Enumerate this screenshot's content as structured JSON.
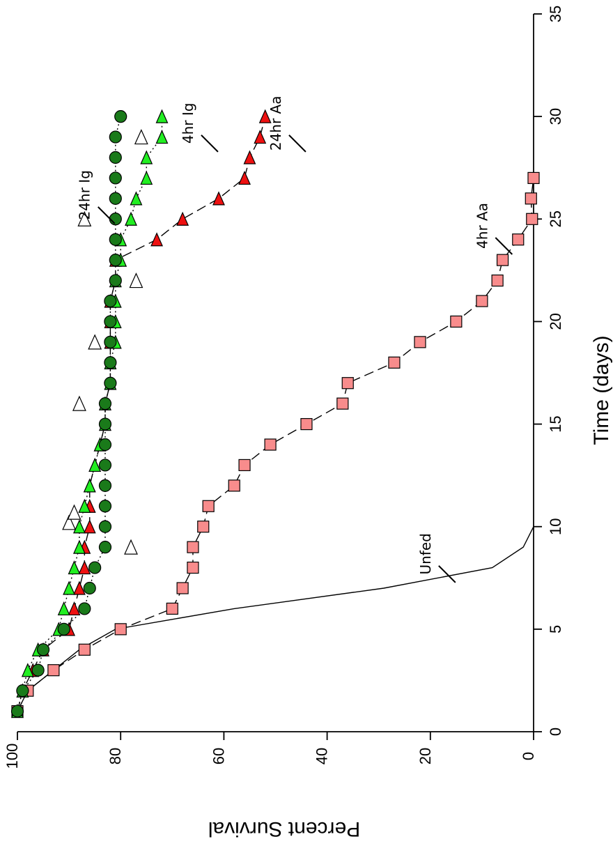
{
  "chart_data": {
    "type": "line",
    "xlabel": "Time (days)",
    "ylabel": "Percent Survival",
    "xlim": [
      0,
      35
    ],
    "ylim": [
      0,
      100
    ],
    "xticks": [
      0,
      5,
      10,
      15,
      20,
      25,
      30,
      35
    ],
    "yticks": [
      0,
      20,
      40,
      60,
      80,
      100
    ],
    "xtick_labels": [
      "0",
      "5",
      "10",
      "15",
      "20",
      "25",
      "30",
      "35"
    ],
    "ytick_labels": [
      "0",
      "20",
      "40",
      "60",
      "80",
      "100"
    ],
    "grid": false,
    "series": [
      {
        "name": "Unfed",
        "marker": "none",
        "line": "solid",
        "color": "#000000",
        "x": [
          1,
          2,
          3,
          4,
          5,
          6,
          7,
          8,
          9,
          10
        ],
        "y": [
          100,
          98,
          93,
          88,
          81,
          58,
          29,
          8,
          2,
          0
        ]
      },
      {
        "name": "4hr Aa",
        "marker": "square",
        "line": "dashed",
        "color": "#f88c8c",
        "x": [
          1,
          2,
          3,
          4,
          5,
          6,
          7,
          8,
          9,
          10,
          11,
          12,
          13,
          14,
          15,
          16,
          17,
          18,
          19,
          20,
          21,
          22,
          23,
          24,
          25,
          26,
          27
        ],
        "y": [
          100,
          98,
          93,
          87,
          80,
          70,
          68,
          66,
          66,
          64,
          63,
          58,
          56,
          51,
          44,
          37,
          36,
          27,
          22,
          15,
          10,
          7,
          6,
          3,
          0.3,
          0.5,
          0
        ],
        "label": "4hr Aa"
      },
      {
        "name": "24hr Aa",
        "marker": "triangle-right",
        "line": "dashed",
        "color": "#ee1111",
        "x": [
          1,
          2,
          3,
          4,
          5,
          6,
          7,
          8,
          9,
          10,
          11,
          12,
          13,
          14,
          15,
          16,
          17,
          18,
          19,
          20,
          21,
          22,
          23,
          24,
          25,
          26,
          27,
          28,
          29,
          30
        ],
        "y": [
          100,
          99,
          97,
          95,
          90,
          89,
          88,
          87,
          87,
          86,
          86,
          86,
          85,
          84,
          83,
          83,
          82,
          82,
          82,
          82,
          82,
          81,
          81,
          73,
          68,
          61,
          56,
          55,
          53,
          52
        ],
        "label": "24hr Aa"
      },
      {
        "name": "4hr Ig",
        "marker": "triangle-right",
        "line": "dotted",
        "color": "#22ee22",
        "x": [
          1,
          2,
          3,
          4,
          5,
          6,
          7,
          8,
          9,
          10,
          11,
          12,
          13,
          14,
          15,
          16,
          17,
          18,
          19,
          20,
          21,
          22,
          23,
          24,
          25,
          26,
          27,
          28,
          29,
          30
        ],
        "y": [
          100,
          99,
          98,
          96,
          92,
          91,
          90,
          89,
          88,
          88,
          87,
          86,
          85,
          84,
          83,
          83,
          82,
          82,
          81,
          81,
          81,
          81,
          80,
          80,
          78,
          77,
          75,
          75,
          72,
          72
        ],
        "label": "4hr Ig"
      },
      {
        "name": "24hr Ig",
        "marker": "circle",
        "line": "dotted",
        "color": "#1a7a1a",
        "x": [
          1,
          2,
          3,
          4,
          5,
          6,
          7,
          8,
          9,
          10,
          11,
          12,
          13,
          14,
          15,
          16,
          17,
          18,
          19,
          20,
          21,
          22,
          23,
          24,
          25,
          26,
          27,
          28,
          29,
          30
        ],
        "y": [
          100,
          99,
          96,
          95,
          91,
          87,
          86,
          85,
          83,
          83,
          83,
          83,
          83,
          83,
          83,
          83,
          82,
          82,
          82,
          82,
          82,
          81,
          81,
          81,
          81,
          81,
          81,
          81,
          81,
          80
        ],
        "label": "24hr Ig"
      },
      {
        "name": "open triangles",
        "marker": "triangle-open",
        "line": "none",
        "color": "#ffffff",
        "x": [
          9,
          10.2,
          10.7,
          16,
          19,
          22,
          25,
          29
        ],
        "y": [
          78,
          90,
          89,
          88,
          85,
          77,
          87,
          76
        ]
      }
    ],
    "annotations": [
      {
        "text": "Unfed",
        "x": 8.5,
        "y": 20
      },
      {
        "text": "4hr Aa",
        "x": 24.5,
        "y": 9
      },
      {
        "text": "24hr Aa",
        "x": 29.5,
        "y": 49
      },
      {
        "text": "4hr Ig",
        "x": 29.5,
        "y": 66
      },
      {
        "text": "24hr Ig",
        "x": 26,
        "y": 86
      }
    ]
  }
}
